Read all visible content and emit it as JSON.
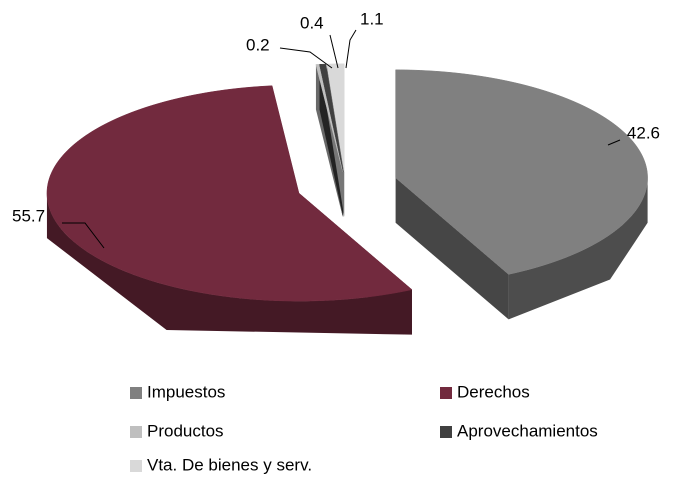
{
  "chart_data": {
    "type": "pie",
    "categories": [
      "Impuestos",
      "Derechos",
      "Productos",
      "Aprovechamientos",
      "Vta. De bienes y serv."
    ],
    "values": [
      42.6,
      55.7,
      0.2,
      0.4,
      1.1
    ],
    "colors": [
      "#808080",
      "#722a3e",
      "#bfbfbf",
      "#404040",
      "#d9d9d9"
    ],
    "legend": "bottom"
  }
}
